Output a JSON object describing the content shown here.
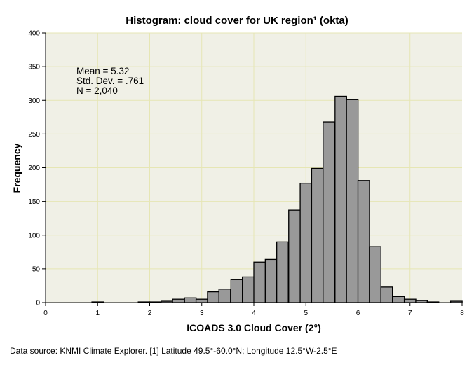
{
  "chart_data": {
    "type": "bar",
    "title": "Histogram: cloud cover for UK region¹ (okta)",
    "xlabel": "ICOADS 3.0 Cloud Cover (2°)",
    "ylabel": "Frequency",
    "xlim": [
      0,
      8
    ],
    "ylim": [
      0,
      400
    ],
    "x_ticks": [
      "0",
      "1",
      "2",
      "3",
      "4",
      "5",
      "6",
      "7",
      "8"
    ],
    "y_ticks": [
      "0",
      "50",
      "100",
      "150",
      "200",
      "250",
      "300",
      "350",
      "400"
    ],
    "bin_width": 0.222,
    "bins": [
      {
        "x0": 0.89,
        "value": 1
      },
      {
        "x0": 1.78,
        "value": 1
      },
      {
        "x0": 2.0,
        "value": 1
      },
      {
        "x0": 2.22,
        "value": 2
      },
      {
        "x0": 2.44,
        "value": 5
      },
      {
        "x0": 2.67,
        "value": 7
      },
      {
        "x0": 2.89,
        "value": 5
      },
      {
        "x0": 3.11,
        "value": 16
      },
      {
        "x0": 3.33,
        "value": 20
      },
      {
        "x0": 3.56,
        "value": 34
      },
      {
        "x0": 3.78,
        "value": 38
      },
      {
        "x0": 4.0,
        "value": 60
      },
      {
        "x0": 4.22,
        "value": 64
      },
      {
        "x0": 4.44,
        "value": 90
      },
      {
        "x0": 4.67,
        "value": 137
      },
      {
        "x0": 4.89,
        "value": 177
      },
      {
        "x0": 5.11,
        "value": 199
      },
      {
        "x0": 5.33,
        "value": 268
      },
      {
        "x0": 5.56,
        "value": 306
      },
      {
        "x0": 5.78,
        "value": 301
      },
      {
        "x0": 6.0,
        "value": 181
      },
      {
        "x0": 6.22,
        "value": 83
      },
      {
        "x0": 6.44,
        "value": 23
      },
      {
        "x0": 6.67,
        "value": 9
      },
      {
        "x0": 6.89,
        "value": 5
      },
      {
        "x0": 7.11,
        "value": 3
      },
      {
        "x0": 7.33,
        "value": 1
      },
      {
        "x0": 7.78,
        "value": 2
      }
    ],
    "stats": [
      "Mean = 5.32",
      "Std. Dev. = .761",
      "N = 2,040"
    ],
    "grid": true,
    "colors": {
      "bar": "#999999",
      "bar_edge": "#000000",
      "plot_bg": "#f0f0e6",
      "grid": "#e6e6b4"
    }
  },
  "footer": "Data source: KNMI Climate Explorer. [1] Latitude 49.5°-60.0°N; Longitude 12.5°W-2.5°E"
}
